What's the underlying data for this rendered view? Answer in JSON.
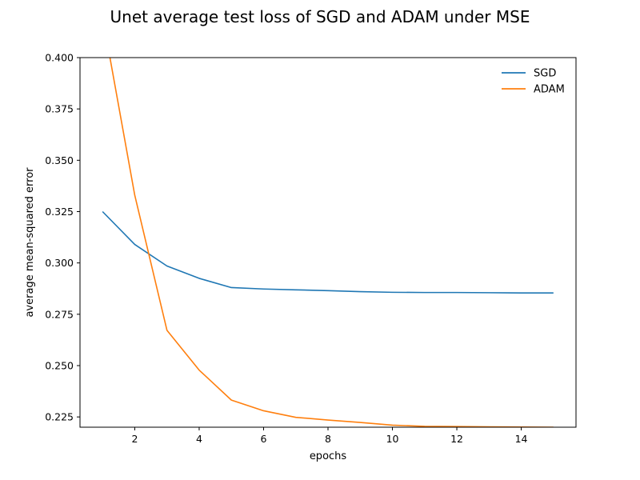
{
  "chart_data": {
    "type": "line",
    "title": "Unet average test loss of SGD and ADAM under MSE",
    "xlabel": "epochs",
    "ylabel": "average mean-squared error",
    "x": [
      1,
      2,
      3,
      4,
      5,
      6,
      7,
      8,
      9,
      10,
      11,
      12,
      13,
      14,
      15
    ],
    "xlim": [
      0.3,
      15.7
    ],
    "ylim": [
      0.22,
      0.4
    ],
    "xticks": [
      2,
      4,
      6,
      8,
      10,
      12,
      14
    ],
    "xtick_labels": [
      "2",
      "4",
      "6",
      "8",
      "10",
      "12",
      "14"
    ],
    "yticks": [
      0.225,
      0.25,
      0.275,
      0.3,
      0.325,
      0.35,
      0.375,
      0.4
    ],
    "ytick_labels": [
      "0.225",
      "0.250",
      "0.275",
      "0.300",
      "0.325",
      "0.350",
      "0.375",
      "0.400"
    ],
    "grid": false,
    "legend_position": "top-right",
    "series": [
      {
        "name": "SGD",
        "color": "#1f77b4",
        "values": [
          0.325,
          0.309,
          0.2985,
          0.2925,
          0.288,
          0.2873,
          0.2869,
          0.2865,
          0.286,
          0.2857,
          0.2856,
          0.2856,
          0.2855,
          0.2854,
          0.2854
        ]
      },
      {
        "name": "ADAM",
        "color": "#ff7f0e",
        "values": [
          0.42,
          0.333,
          0.2672,
          0.2478,
          0.2332,
          0.228,
          0.2248,
          0.2235,
          0.2223,
          0.221,
          0.2204,
          0.2203,
          0.2202,
          0.2201,
          0.22
        ]
      }
    ]
  }
}
